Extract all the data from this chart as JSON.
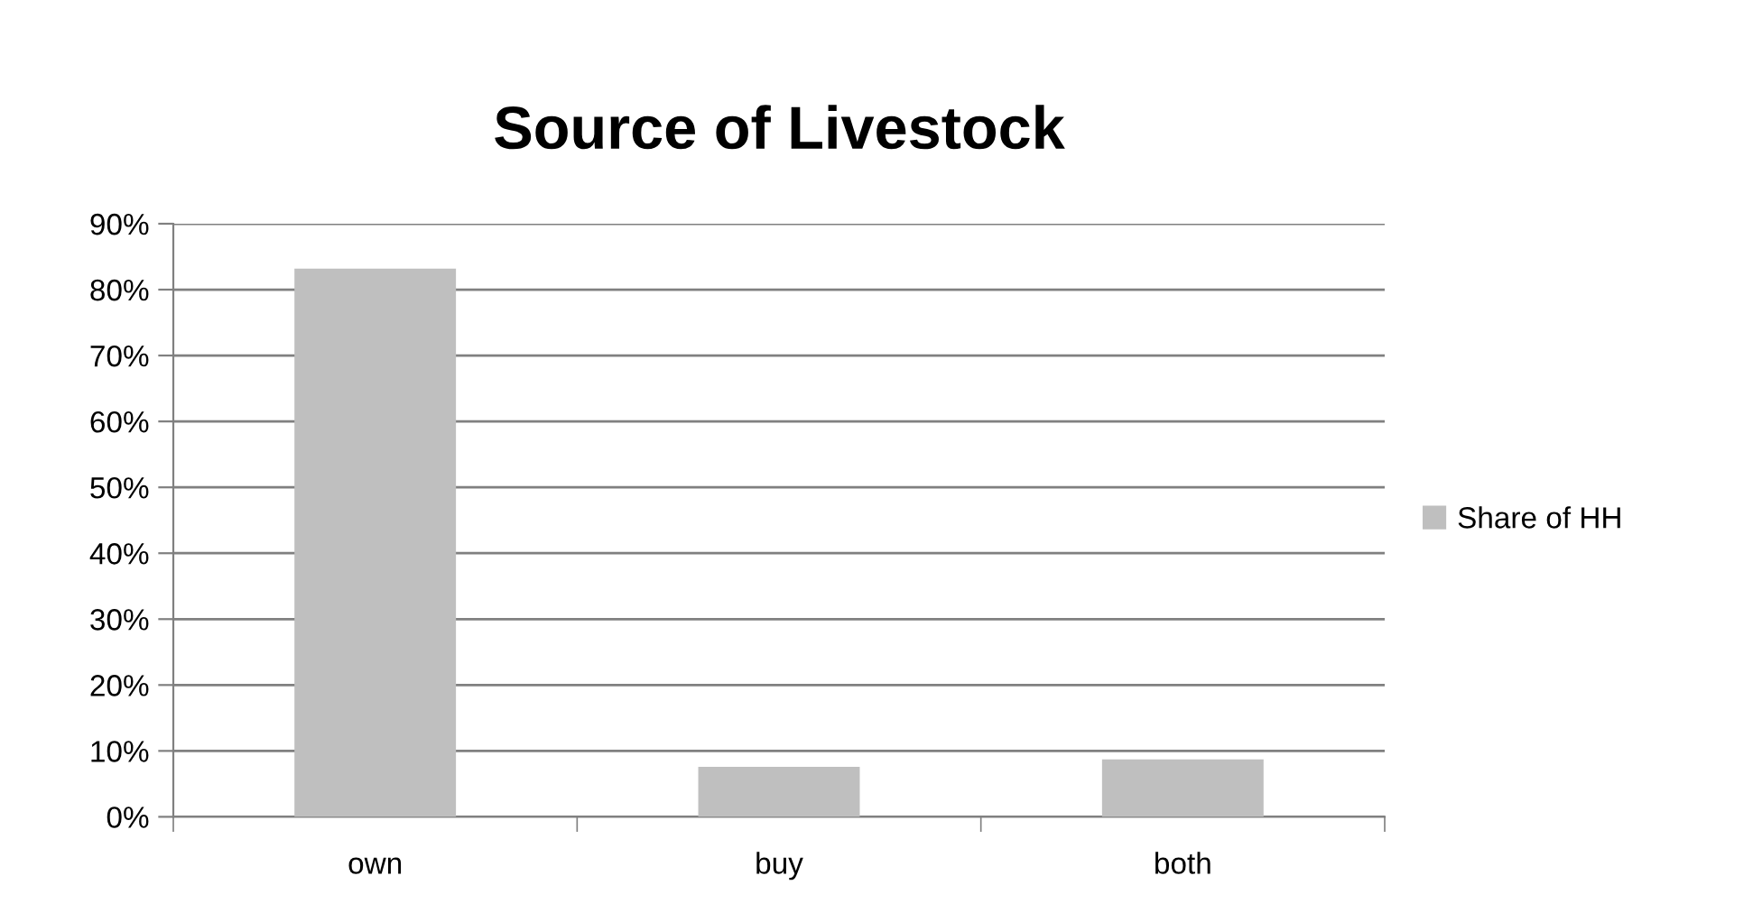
{
  "chart_data": {
    "type": "bar",
    "title": "Source of Livestock",
    "categories": [
      "own",
      "buy",
      "both"
    ],
    "series": [
      {
        "name": "Share of HH",
        "color": "#bfbfbf",
        "values": [
          83.2,
          7.6,
          8.7
        ]
      }
    ],
    "ylim": [
      0,
      90
    ],
    "yticks": [
      {
        "value": 0,
        "label": "0%"
      },
      {
        "value": 10,
        "label": "10%"
      },
      {
        "value": 20,
        "label": "20%"
      },
      {
        "value": 30,
        "label": "30%"
      },
      {
        "value": 40,
        "label": "40%"
      },
      {
        "value": 50,
        "label": "50%"
      },
      {
        "value": 60,
        "label": "60%"
      },
      {
        "value": 70,
        "label": "70%"
      },
      {
        "value": 80,
        "label": "80%"
      },
      {
        "value": 90,
        "label": "90%"
      }
    ],
    "grid": "y",
    "legend": "right"
  }
}
